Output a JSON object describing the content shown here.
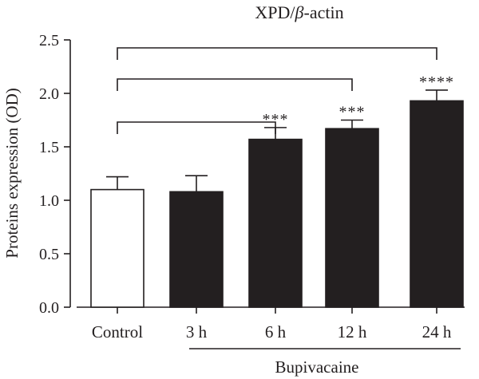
{
  "chart_data": {
    "type": "bar",
    "title": "XPD/β-actin",
    "title_parts": [
      "XPD/",
      "β",
      "-actin"
    ],
    "ylabel": "Proteins expression (OD)",
    "xlabel": "",
    "ylim": [
      0,
      2.5
    ],
    "yticks": [
      0.0,
      0.5,
      1.0,
      1.5,
      2.0,
      2.5
    ],
    "ytick_labels": [
      "0.0",
      "0.5",
      "1.0",
      "1.5",
      "2.0",
      "2.5"
    ],
    "categories": [
      "Control",
      "3 h",
      "6 h",
      "12 h",
      "24 h"
    ],
    "values": [
      1.1,
      1.08,
      1.57,
      1.67,
      1.93
    ],
    "errors": [
      0.12,
      0.15,
      0.11,
      0.08,
      0.1
    ],
    "bar_fills": [
      "#ffffff",
      "#231f20",
      "#231f20",
      "#231f20",
      "#231f20"
    ],
    "significance": [
      "",
      "",
      "***",
      "***",
      "****"
    ],
    "group_label": "Bupivacaine",
    "comparisons": [
      {
        "from": "Control",
        "to": "6 h"
      },
      {
        "from": "Control",
        "to": "12 h"
      },
      {
        "from": "Control",
        "to": "24 h"
      }
    ],
    "grid": false,
    "legend": "none"
  },
  "colors": {
    "ink": "#231f20",
    "background": "#ffffff"
  }
}
